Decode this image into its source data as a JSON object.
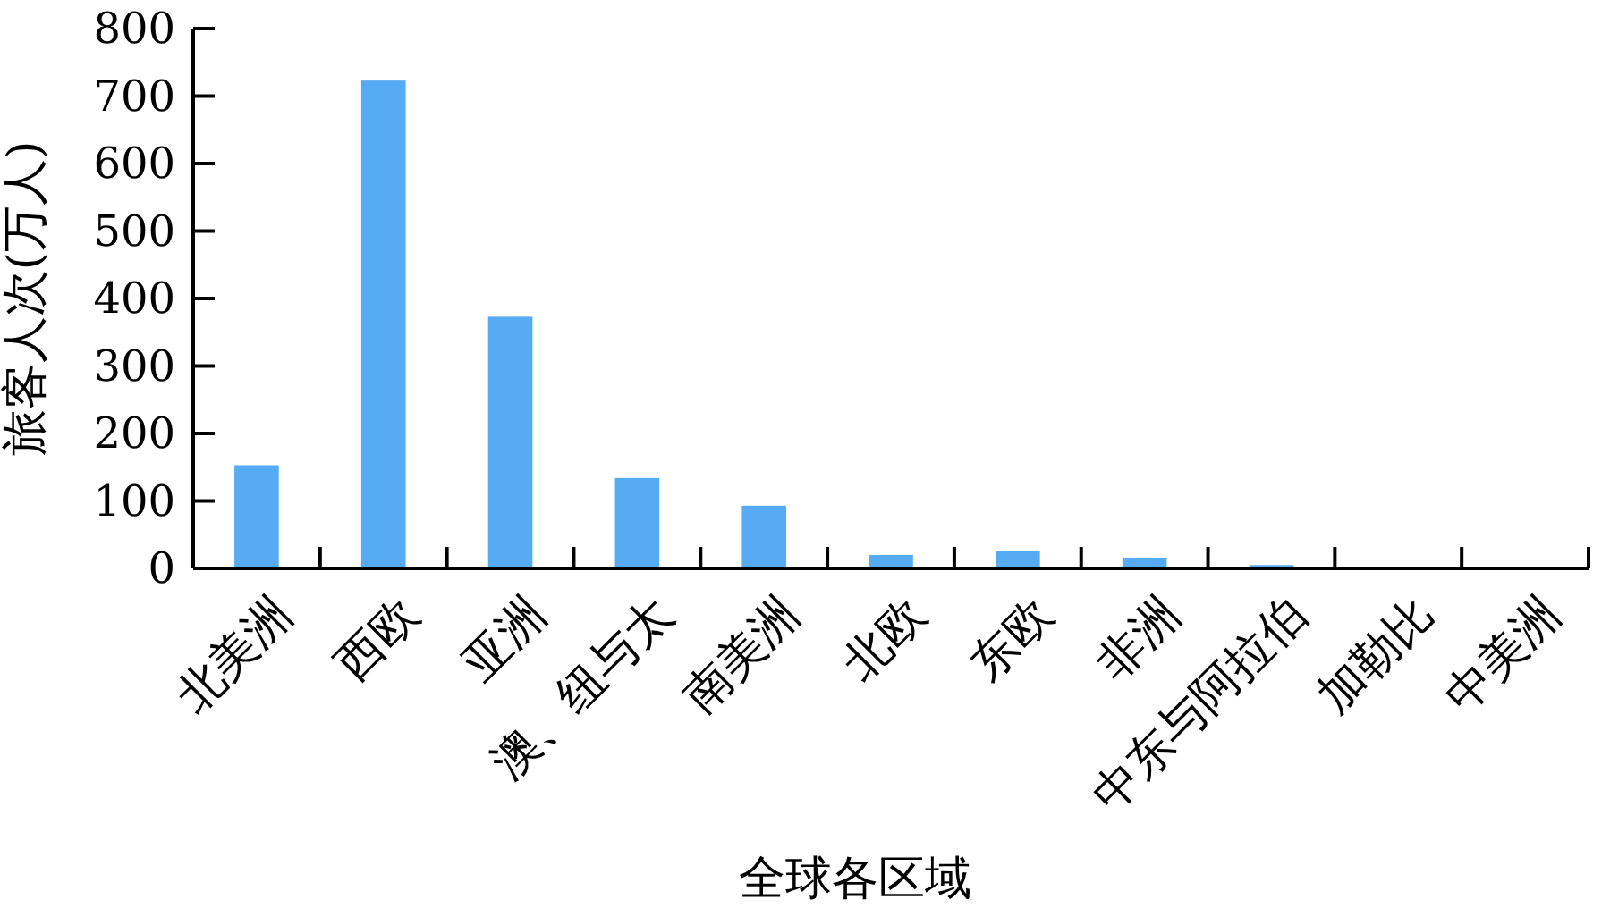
{
  "chart_data": {
    "type": "bar",
    "xlabel": "全球各区域",
    "ylabel": "旅客人次(万人)",
    "categories": [
      "北美洲",
      "西欧",
      "亚洲",
      "澳、纽与太",
      "南美洲",
      "北欧",
      "东欧",
      "非洲",
      "中东与阿拉伯",
      "加勒比",
      "中美洲"
    ],
    "values": [
      153,
      723,
      373,
      134,
      93,
      20,
      26,
      16,
      5,
      0,
      0
    ],
    "color": "#56abf3",
    "ylim": [
      0,
      800
    ],
    "yticks": [
      0,
      100,
      200,
      300,
      400,
      500,
      600,
      700,
      800
    ],
    "grid": false
  }
}
